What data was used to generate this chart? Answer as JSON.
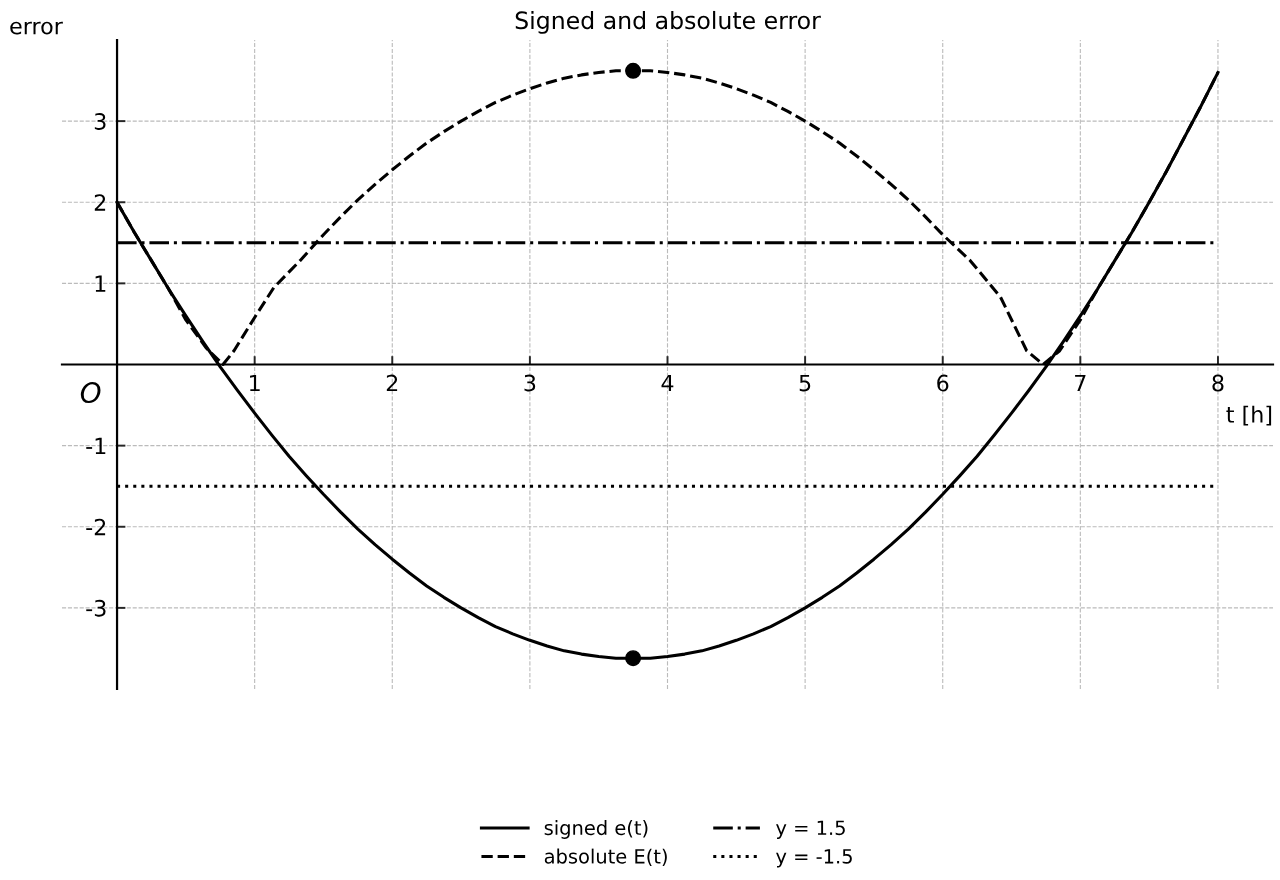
{
  "chart_data": {
    "type": "line",
    "title": "Signed and absolute error",
    "xlabel": "t [h]",
    "ylabel": "error",
    "series": [
      {
        "name": "signed e(t)",
        "color": "#000000",
        "line_style": "solid",
        "x": [
          0,
          0.125,
          0.25,
          0.375,
          0.5,
          0.625,
          0.75,
          0.875,
          1,
          1.125,
          1.25,
          1.375,
          1.5,
          1.625,
          1.75,
          1.875,
          2,
          2.125,
          2.25,
          2.375,
          2.5,
          2.625,
          2.75,
          2.875,
          3,
          3.125,
          3.25,
          3.375,
          3.5,
          3.625,
          3.75,
          3.875,
          4,
          4.125,
          4.25,
          4.375,
          4.5,
          4.625,
          4.75,
          4.875,
          5,
          5.125,
          5.25,
          5.375,
          5.5,
          5.625,
          5.75,
          5.875,
          6,
          6.125,
          6.25,
          6.375,
          6.5,
          6.625,
          6.75,
          6.875,
          7,
          7.125,
          7.25,
          7.375,
          7.5,
          7.625,
          7.75,
          7.875,
          8
        ],
        "values": [
          2.0,
          1.63,
          1.28,
          0.93,
          0.6,
          0.28,
          -0.03,
          -0.32,
          -0.6,
          -0.87,
          -1.13,
          -1.37,
          -1.6,
          -1.82,
          -2.03,
          -2.22,
          -2.4,
          -2.57,
          -2.73,
          -2.87,
          -3.0,
          -3.12,
          -3.23,
          -3.32,
          -3.4,
          -3.47,
          -3.53,
          -3.57,
          -3.6,
          -3.62,
          -3.62,
          -3.62,
          -3.6,
          -3.57,
          -3.53,
          -3.47,
          -3.4,
          -3.32,
          -3.23,
          -3.12,
          -3.0,
          -2.87,
          -2.73,
          -2.57,
          -2.4,
          -2.22,
          -2.03,
          -1.82,
          -1.6,
          -1.37,
          -1.13,
          -0.87,
          -0.6,
          -0.32,
          -0.03,
          0.28,
          0.6,
          0.93,
          1.28,
          1.63,
          2.0,
          2.38,
          2.78,
          3.18,
          3.6
        ]
      },
      {
        "name": "absolute E(t)",
        "color": "#000000",
        "line_style": "dashed",
        "x": [
          0,
          0.125,
          0.25,
          0.375,
          0.5,
          0.65,
          0.77,
          0.85,
          1.0,
          1.14,
          1.33,
          1.5,
          1.625,
          1.75,
          1.875,
          2,
          2.125,
          2.25,
          2.375,
          2.5,
          2.625,
          2.75,
          2.875,
          3,
          3.125,
          3.25,
          3.375,
          3.5,
          3.625,
          3.75,
          3.875,
          4,
          4.125,
          4.25,
          4.375,
          4.5,
          4.625,
          4.75,
          4.875,
          5,
          5.125,
          5.25,
          5.375,
          5.5,
          5.625,
          5.75,
          5.875,
          6,
          6.2,
          6.42,
          6.61,
          6.73,
          6.85,
          7,
          7.125,
          7.25,
          7.375,
          7.5,
          7.625,
          7.75,
          7.875,
          8
        ],
        "values": [
          2.0,
          1.63,
          1.28,
          0.93,
          0.55,
          0.2,
          0.0,
          0.17,
          0.58,
          0.95,
          1.28,
          1.6,
          1.82,
          2.03,
          2.22,
          2.4,
          2.57,
          2.73,
          2.87,
          3.0,
          3.12,
          3.23,
          3.32,
          3.4,
          3.47,
          3.53,
          3.57,
          3.6,
          3.62,
          3.62,
          3.62,
          3.6,
          3.57,
          3.53,
          3.47,
          3.4,
          3.32,
          3.23,
          3.12,
          3.0,
          2.87,
          2.73,
          2.57,
          2.4,
          2.22,
          2.03,
          1.82,
          1.6,
          1.28,
          0.83,
          0.17,
          0.0,
          0.17,
          0.55,
          0.93,
          1.28,
          1.63,
          2.0,
          2.38,
          2.78,
          3.18,
          3.6
        ]
      },
      {
        "name": "y = 1.5",
        "color": "#000000",
        "line_style": "dashdot",
        "x": [
          0,
          8
        ],
        "values": [
          1.5,
          1.5
        ]
      },
      {
        "name": "y = -1.5",
        "color": "#000000",
        "line_style": "dotted",
        "x": [
          0,
          8
        ],
        "values": [
          -1.5,
          -1.5
        ]
      },
      {
        "type": "scatter",
        "color": "#000000",
        "marker": "circle",
        "x": [
          3.75,
          3.75
        ],
        "values": [
          3.62,
          -3.62
        ]
      }
    ],
    "xlim": [
      -0.4,
      8.4
    ],
    "ylim": [
      -4,
      4
    ],
    "xticks": [
      1,
      2,
      3,
      4,
      5,
      6,
      7,
      8
    ],
    "yticks": [
      -3,
      -2,
      -1,
      1,
      2,
      3
    ],
    "grid": true,
    "legend": "bottom",
    "annotations": [
      "O"
    ]
  }
}
